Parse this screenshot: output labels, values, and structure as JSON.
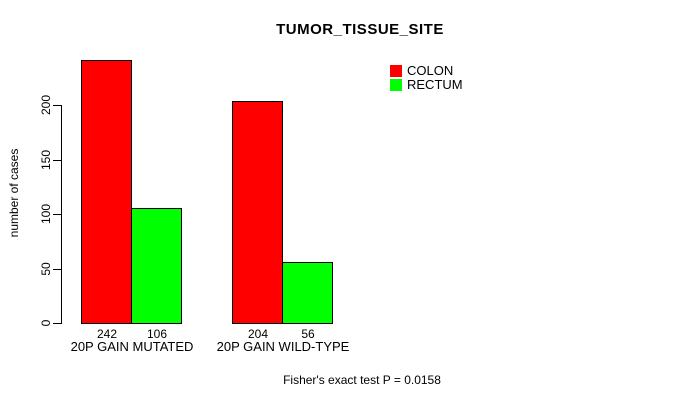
{
  "chart_data": {
    "type": "bar",
    "title": "TUMOR_TISSUE_SITE",
    "categories": [
      "20P GAIN MUTATED",
      "20P GAIN WILD-TYPE"
    ],
    "series": [
      {
        "name": "COLON",
        "color": "#ff0000",
        "values": [
          242,
          204
        ]
      },
      {
        "name": "RECTUM",
        "color": "#00ff00",
        "values": [
          106,
          56
        ]
      }
    ],
    "xlabel": "",
    "ylabel": "number of cases",
    "ylim": [
      0,
      250
    ],
    "yticks": [
      0,
      50,
      100,
      150,
      200
    ],
    "bar_value_labels": [
      "242",
      "106",
      "204",
      "56"
    ],
    "grid": false,
    "legend_position": "top-right",
    "annotation": "Fisher's exact test P = 0.0158",
    "bar_border_color": "#000000",
    "axis_color": "#000000",
    "background_color": "#ffffff"
  }
}
